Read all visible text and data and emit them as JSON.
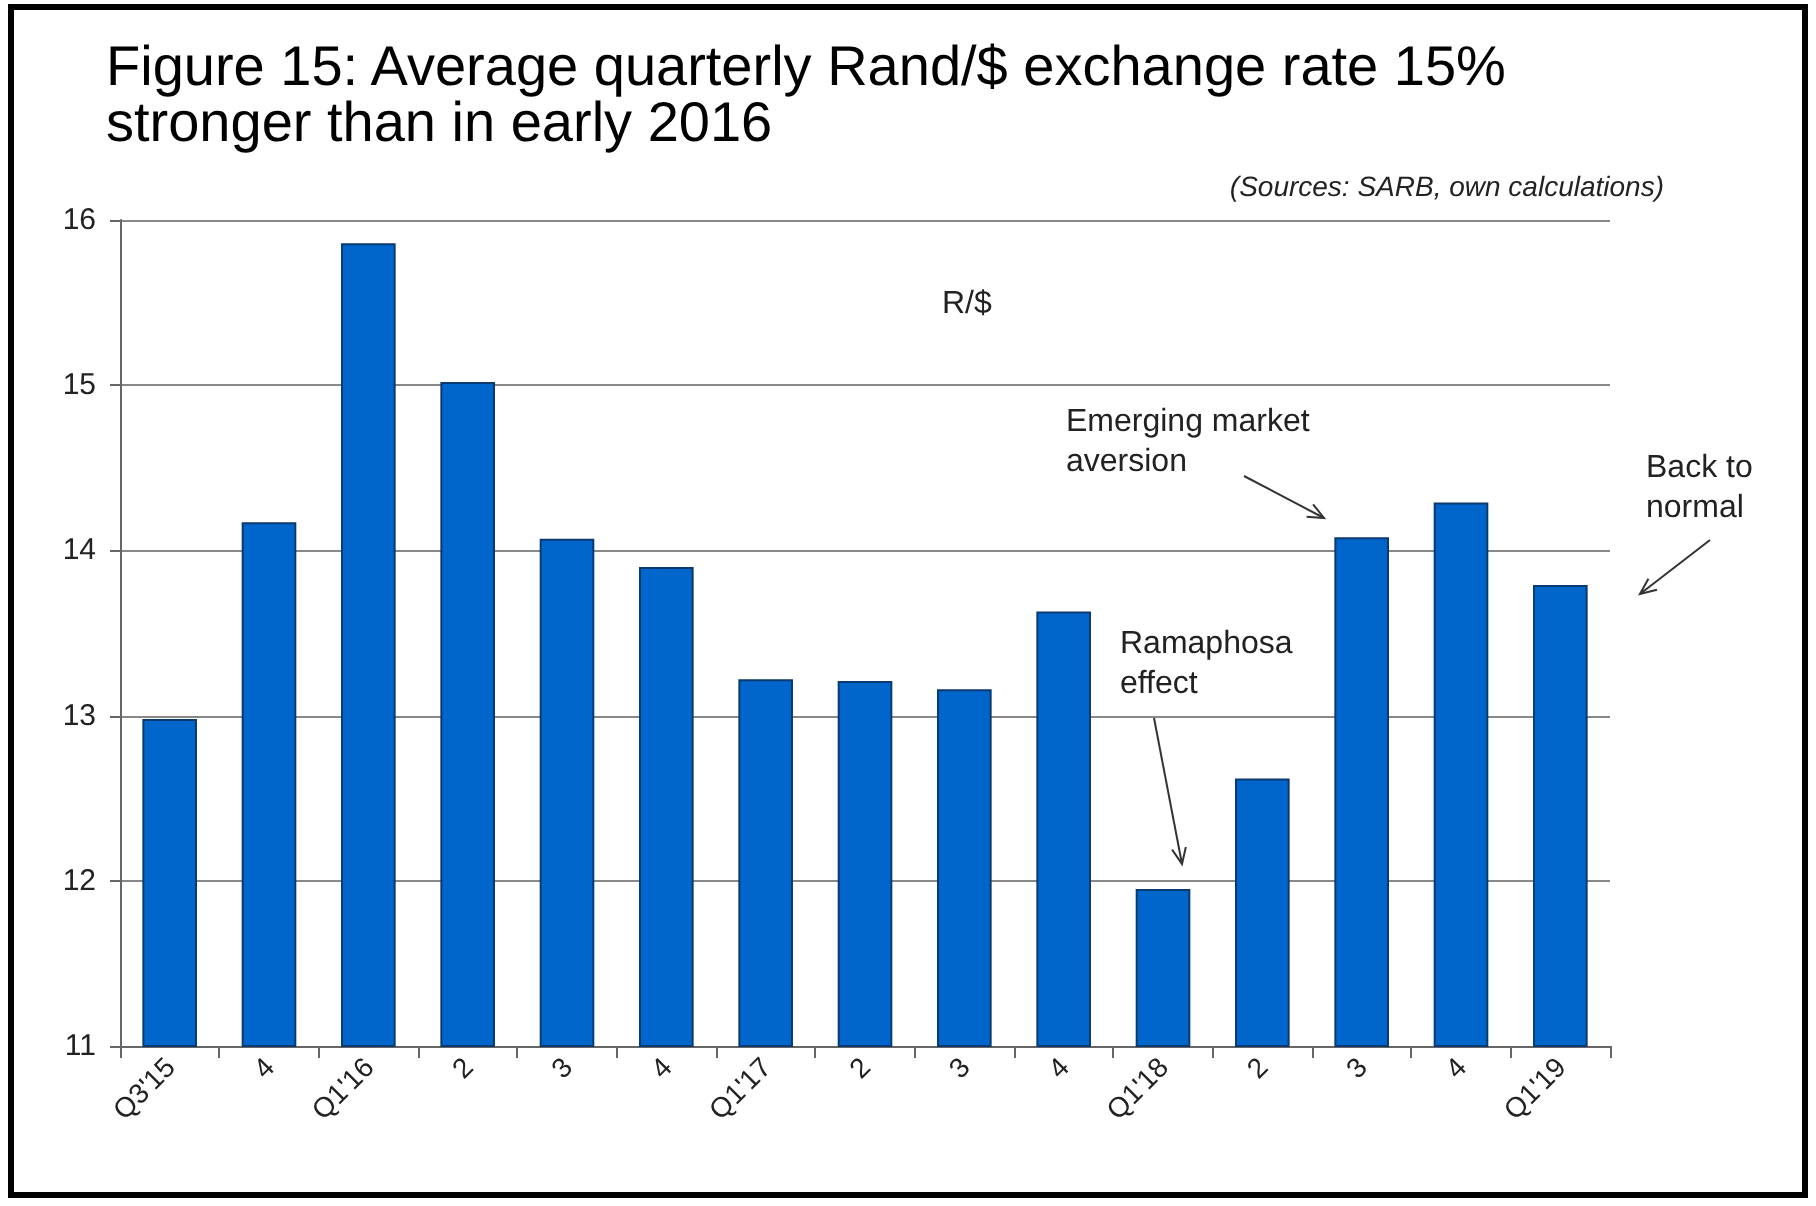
{
  "chart_data": {
    "type": "bar",
    "title": "Figure 15: Average quarterly Rand/$ exchange rate 15% stronger than in early 2016",
    "categories": [
      "Q3'15",
      "4",
      "Q1'16",
      "2",
      "3",
      "4",
      "Q1'17",
      "2",
      "3",
      "4",
      "Q1'18",
      "2",
      "3",
      "4",
      "Q1'19"
    ],
    "values": [
      12.98,
      14.17,
      15.86,
      15.02,
      14.07,
      13.9,
      13.22,
      13.21,
      13.16,
      13.63,
      11.95,
      12.62,
      14.08,
      14.29,
      13.79
    ],
    "color": "#0066cc",
    "ylim": [
      11,
      16
    ],
    "yticks": [
      11,
      12,
      13,
      14,
      15,
      16
    ],
    "grid": "y",
    "annotations": [
      "(Sources: SARB, own calculations)",
      "R/$",
      "Emerging market aversion",
      "Ramaphosa effect",
      "Back to normal"
    ]
  }
}
